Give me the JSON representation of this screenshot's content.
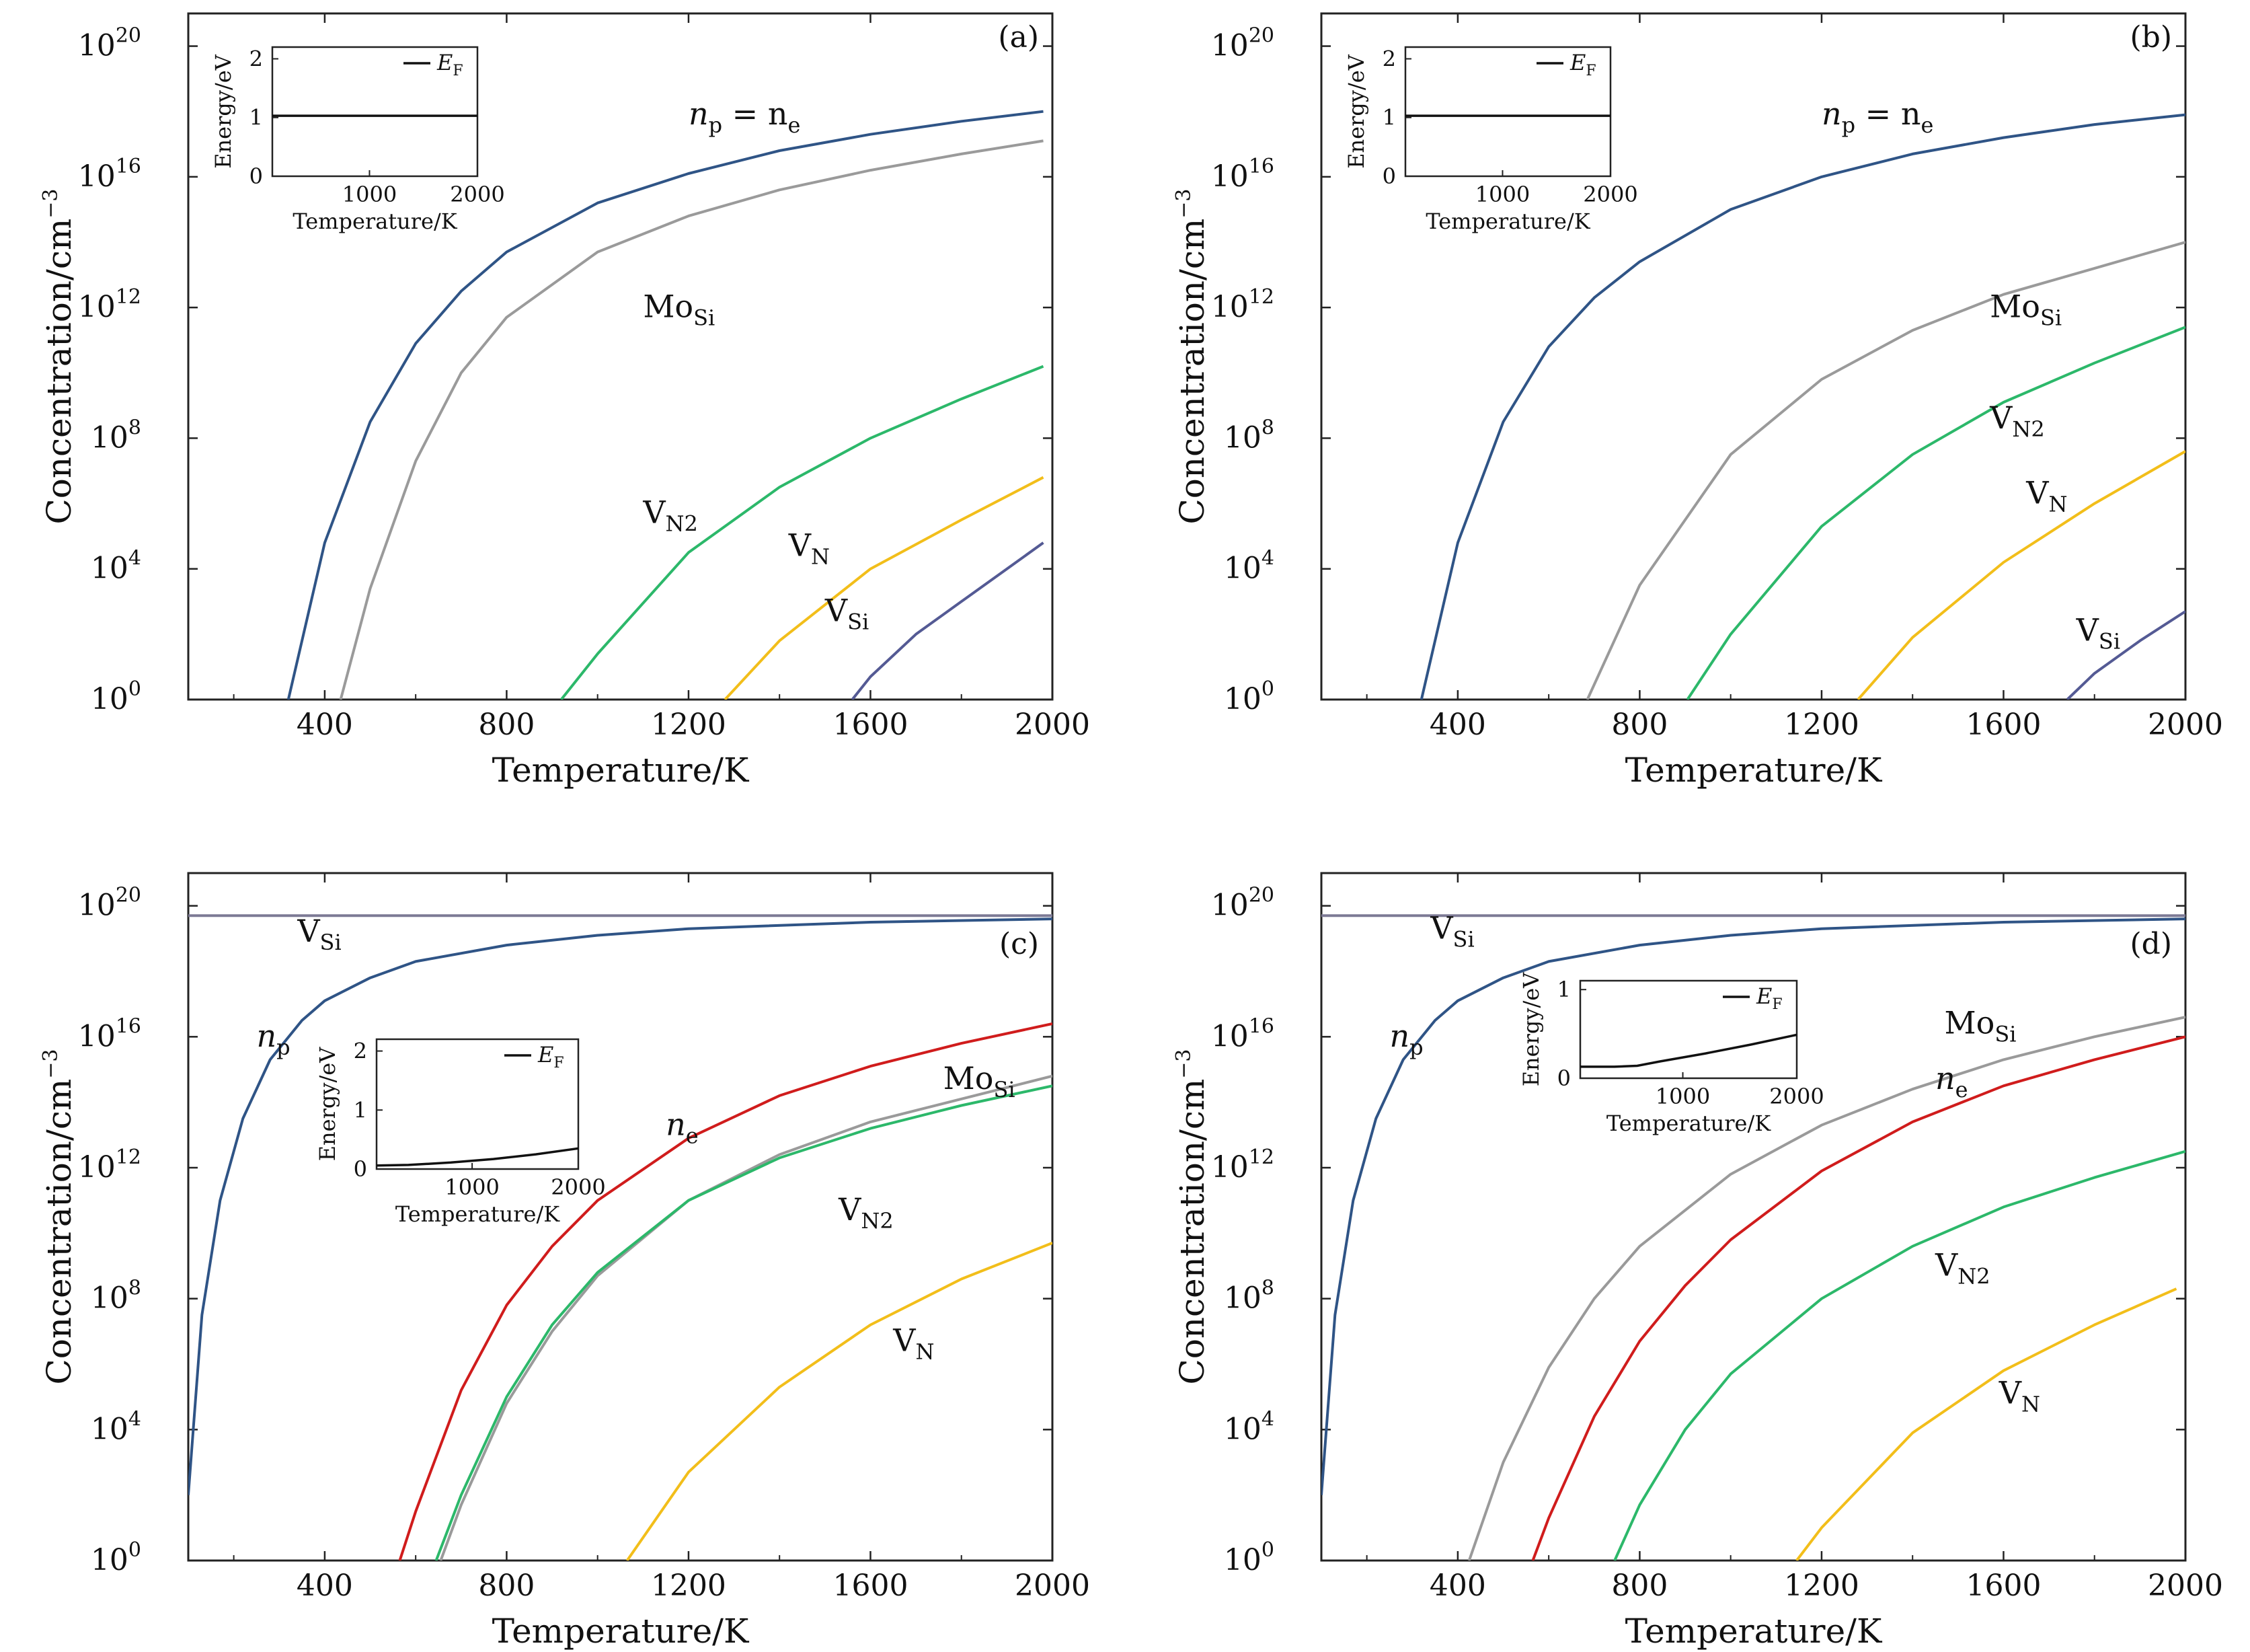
{
  "figure": {
    "x_axis_label": "Temperature/K",
    "y_axis_label": "Concentration/cm",
    "y_axis_unit_exponent": "−3"
  },
  "chart_data": [
    {
      "type": "line",
      "panel": "(a)",
      "xlim": [
        100,
        2000
      ],
      "ylim_log10": [
        0,
        21
      ],
      "x_ticks": [
        400,
        800,
        1200,
        1600,
        2000
      ],
      "y_ticks": [
        {
          "base": "10",
          "exp": "0",
          "value": 0
        },
        {
          "base": "10",
          "exp": "4",
          "value": 4
        },
        {
          "base": "10",
          "exp": "8",
          "value": 8
        },
        {
          "base": "10",
          "exp": "12",
          "value": 12
        },
        {
          "base": "10",
          "exp": "16",
          "value": 16
        },
        {
          "base": "10",
          "exp": "20",
          "value": 20
        }
      ],
      "series": [
        {
          "name": "n_p = n_e",
          "color": "#2f5486",
          "x": [
            320,
            400,
            500,
            600,
            700,
            800,
            1000,
            1200,
            1400,
            1600,
            1800,
            1980
          ],
          "log10_y": [
            0,
            4.8,
            8.5,
            10.9,
            12.5,
            13.7,
            15.2,
            16.1,
            16.8,
            17.3,
            17.7,
            18.0
          ]
        },
        {
          "name": "Mo_Si",
          "color": "#9a9a9a",
          "x": [
            435,
            500,
            600,
            700,
            800,
            1000,
            1200,
            1400,
            1600,
            1800,
            1980
          ],
          "log10_y": [
            0,
            3.4,
            7.3,
            10.0,
            11.7,
            13.7,
            14.8,
            15.6,
            16.2,
            16.7,
            17.1
          ]
        },
        {
          "name": "V_N2",
          "color": "#2cb86a",
          "x": [
            920,
            1000,
            1200,
            1400,
            1600,
            1800,
            1980
          ],
          "log10_y": [
            0,
            1.4,
            4.5,
            6.5,
            8.0,
            9.2,
            10.2
          ]
        },
        {
          "name": "V_N",
          "color": "#f2be1a",
          "x": [
            1280,
            1400,
            1600,
            1800,
            1980
          ],
          "log10_y": [
            0,
            1.8,
            4.0,
            5.5,
            6.8
          ]
        },
        {
          "name": "V_Si",
          "color": "#545a94",
          "x": [
            1560,
            1600,
            1700,
            1800,
            1900,
            1980
          ],
          "log10_y": [
            0,
            0.7,
            2.0,
            3.0,
            4.0,
            4.8
          ]
        }
      ],
      "labels": [
        {
          "series": "n_p = n_e",
          "text": "n",
          "sub": "p",
          "text2": " = n",
          "sub2": "e",
          "x": 1200,
          "log10_y": 17.6
        },
        {
          "series": "Mo_Si",
          "text": "Mo",
          "sub": "Si",
          "x": 1100,
          "log10_y": 11.7
        },
        {
          "series": "V_N2",
          "text": "V",
          "sub": "N2",
          "x": 1100,
          "log10_y": 5.4
        },
        {
          "series": "V_N",
          "text": "V",
          "sub": "N",
          "x": 1420,
          "log10_y": 4.4
        },
        {
          "series": "V_Si",
          "text": "V",
          "sub": "Si",
          "x": 1500,
          "log10_y": 2.4
        }
      ],
      "inset": {
        "xlim": [
          100,
          2000
        ],
        "ylim": [
          0,
          2.2
        ],
        "x_ticks": [
          1000,
          2000
        ],
        "y_ticks": [
          0,
          1,
          2
        ],
        "xlabel": "Temperature/K",
        "ylabel": "Energy/eV",
        "legend": "E",
        "legend_sub": "F",
        "x": [
          100,
          400,
          800,
          1200,
          1600,
          2000
        ],
        "y": [
          1.03,
          1.03,
          1.03,
          1.03,
          1.03,
          1.03
        ]
      }
    },
    {
      "type": "line",
      "panel": "(b)",
      "xlim": [
        100,
        2000
      ],
      "ylim_log10": [
        0,
        21
      ],
      "x_ticks": [
        400,
        800,
        1200,
        1600,
        2000
      ],
      "y_ticks": [
        {
          "base": "10",
          "exp": "0",
          "value": 0
        },
        {
          "base": "10",
          "exp": "4",
          "value": 4
        },
        {
          "base": "10",
          "exp": "8",
          "value": 8
        },
        {
          "base": "10",
          "exp": "12",
          "value": 12
        },
        {
          "base": "10",
          "exp": "16",
          "value": 16
        },
        {
          "base": "10",
          "exp": "20",
          "value": 20
        }
      ],
      "series": [
        {
          "name": "n_p = n_e",
          "color": "#2f5486",
          "x": [
            320,
            400,
            500,
            600,
            700,
            800,
            1000,
            1200,
            1400,
            1600,
            1800,
            2000
          ],
          "log10_y": [
            0,
            4.8,
            8.5,
            10.8,
            12.3,
            13.4,
            15.0,
            16.0,
            16.7,
            17.2,
            17.6,
            17.9
          ]
        },
        {
          "name": "Mo_Si",
          "color": "#9a9a9a",
          "x": [
            685,
            800,
            1000,
            1200,
            1400,
            1600,
            1800,
            2000
          ],
          "log10_y": [
            0,
            3.5,
            7.5,
            9.8,
            11.3,
            12.4,
            13.2,
            14.0
          ]
        },
        {
          "name": "V_N2",
          "color": "#2cb86a",
          "x": [
            905,
            1000,
            1200,
            1400,
            1600,
            1800,
            2000
          ],
          "log10_y": [
            0,
            2.0,
            5.3,
            7.5,
            9.1,
            10.3,
            11.4
          ]
        },
        {
          "name": "V_N",
          "color": "#f2be1a",
          "x": [
            1280,
            1400,
            1600,
            1800,
            2000
          ],
          "log10_y": [
            0,
            1.9,
            4.2,
            6.0,
            7.6
          ]
        },
        {
          "name": "V_Si",
          "color": "#545a94",
          "x": [
            1740,
            1800,
            1900,
            2000
          ],
          "log10_y": [
            0,
            0.8,
            1.8,
            2.7
          ]
        }
      ],
      "labels": [
        {
          "series": "n_p = n_e",
          "text": "n",
          "sub": "p",
          "text2": " = n",
          "sub2": "e",
          "x": 1200,
          "log10_y": 17.6
        },
        {
          "series": "Mo_Si",
          "text": "Mo",
          "sub": "Si",
          "x": 1570,
          "log10_y": 11.7
        },
        {
          "series": "V_N2",
          "text": "V",
          "sub": "N2",
          "x": 1570,
          "log10_y": 8.3
        },
        {
          "series": "V_N",
          "text": "V",
          "sub": "N",
          "x": 1650,
          "log10_y": 6.0
        },
        {
          "series": "V_Si",
          "text": "V",
          "sub": "Si",
          "x": 1760,
          "log10_y": 1.8
        }
      ],
      "inset": {
        "xlim": [
          100,
          2000
        ],
        "ylim": [
          0,
          2.2
        ],
        "x_ticks": [
          1000,
          2000
        ],
        "y_ticks": [
          0,
          1,
          2
        ],
        "xlabel": "Temperature/K",
        "ylabel": "Energy/eV",
        "legend": "E",
        "legend_sub": "F",
        "x": [
          100,
          400,
          800,
          1200,
          1600,
          2000
        ],
        "y": [
          1.03,
          1.03,
          1.03,
          1.03,
          1.03,
          1.03
        ]
      }
    },
    {
      "type": "line",
      "panel": "(c)",
      "xlim": [
        100,
        2000
      ],
      "ylim_log10": [
        0,
        21
      ],
      "x_ticks": [
        400,
        800,
        1200,
        1600,
        2000
      ],
      "y_ticks": [
        {
          "base": "10",
          "exp": "0",
          "value": 0
        },
        {
          "base": "10",
          "exp": "4",
          "value": 4
        },
        {
          "base": "10",
          "exp": "8",
          "value": 8
        },
        {
          "base": "10",
          "exp": "12",
          "value": 12
        },
        {
          "base": "10",
          "exp": "16",
          "value": 16
        },
        {
          "base": "10",
          "exp": "20",
          "value": 20
        }
      ],
      "series": [
        {
          "name": "V_Si",
          "color": "#7d7a95",
          "x": [
            100,
            500,
            1000,
            1500,
            2000
          ],
          "log10_y": [
            19.7,
            19.7,
            19.7,
            19.7,
            19.7
          ]
        },
        {
          "name": "n_p",
          "color": "#2f5486",
          "x": [
            100,
            130,
            170,
            220,
            280,
            350,
            400,
            500,
            600,
            800,
            1000,
            1200,
            1600,
            2000
          ],
          "log10_y": [
            2.0,
            7.5,
            11.0,
            13.5,
            15.3,
            16.5,
            17.1,
            17.8,
            18.3,
            18.8,
            19.1,
            19.3,
            19.5,
            19.6
          ]
        },
        {
          "name": "n_e",
          "color": "#d01c1c",
          "x": [
            565,
            600,
            700,
            800,
            900,
            1000,
            1200,
            1400,
            1600,
            1800,
            2000
          ],
          "log10_y": [
            0,
            1.5,
            5.2,
            7.8,
            9.6,
            11.0,
            12.9,
            14.2,
            15.1,
            15.8,
            16.4
          ]
        },
        {
          "name": "Mo_Si",
          "color": "#9a9a9a",
          "x": [
            655,
            700,
            800,
            900,
            1000,
            1200,
            1400,
            1600,
            1800,
            2000
          ],
          "log10_y": [
            0,
            1.7,
            4.8,
            7.0,
            8.7,
            11.0,
            12.4,
            13.4,
            14.1,
            14.8
          ]
        },
        {
          "name": "V_N2",
          "color": "#2cb86a",
          "x": [
            645,
            700,
            800,
            900,
            1000,
            1200,
            1400,
            1600,
            1800,
            2000
          ],
          "log10_y": [
            0,
            2.0,
            5.0,
            7.2,
            8.8,
            11.0,
            12.3,
            13.2,
            13.9,
            14.5
          ]
        },
        {
          "name": "V_N",
          "color": "#f2be1a",
          "x": [
            1065,
            1200,
            1400,
            1600,
            1800,
            2000
          ],
          "log10_y": [
            0,
            2.7,
            5.3,
            7.2,
            8.6,
            9.7
          ]
        }
      ],
      "labels": [
        {
          "series": "V_Si",
          "text": "V",
          "sub": "Si",
          "x": 340,
          "log10_y": 18.9
        },
        {
          "series": "n_p",
          "text": "n",
          "sub": "p",
          "x": 250,
          "log10_y": 15.7
        },
        {
          "series": "n_e",
          "text": "n",
          "sub": "e",
          "x": 1150,
          "log10_y": 13.0
        },
        {
          "series": "Mo_Si",
          "text": "Mo",
          "sub": "Si",
          "x": 1760,
          "log10_y": 14.4
        },
        {
          "series": "V_N2",
          "text": "V",
          "sub": "N2",
          "x": 1530,
          "log10_y": 10.4
        },
        {
          "series": "V_N",
          "text": "V",
          "sub": "N",
          "x": 1650,
          "log10_y": 6.4
        }
      ],
      "inset": {
        "xlim": [
          100,
          2000
        ],
        "ylim": [
          0,
          2.2
        ],
        "x_ticks": [
          1000,
          2000
        ],
        "y_ticks": [
          0,
          1,
          2
        ],
        "xlabel": "Temperature/K",
        "ylabel": "Energy/eV",
        "legend": "E",
        "legend_sub": "F",
        "x": [
          100,
          400,
          800,
          1200,
          1600,
          2000
        ],
        "y": [
          0.06,
          0.07,
          0.11,
          0.17,
          0.25,
          0.35
        ]
      }
    },
    {
      "type": "line",
      "panel": "(d)",
      "xlim": [
        100,
        2000
      ],
      "ylim_log10": [
        0,
        21
      ],
      "x_ticks": [
        400,
        800,
        1200,
        1600,
        2000
      ],
      "y_ticks": [
        {
          "base": "10",
          "exp": "0",
          "value": 0
        },
        {
          "base": "10",
          "exp": "4",
          "value": 4
        },
        {
          "base": "10",
          "exp": "8",
          "value": 8
        },
        {
          "base": "10",
          "exp": "12",
          "value": 12
        },
        {
          "base": "10",
          "exp": "16",
          "value": 16
        },
        {
          "base": "10",
          "exp": "20",
          "value": 20
        }
      ],
      "series": [
        {
          "name": "V_Si",
          "color": "#7d7a95",
          "x": [
            100,
            500,
            1000,
            1500,
            2000
          ],
          "log10_y": [
            19.7,
            19.7,
            19.7,
            19.7,
            19.7
          ]
        },
        {
          "name": "n_p",
          "color": "#2f5486",
          "x": [
            100,
            130,
            170,
            220,
            280,
            350,
            400,
            500,
            600,
            800,
            1000,
            1200,
            1600,
            2000
          ],
          "log10_y": [
            2.0,
            7.5,
            11.0,
            13.5,
            15.3,
            16.5,
            17.1,
            17.8,
            18.3,
            18.8,
            19.1,
            19.3,
            19.5,
            19.6
          ]
        },
        {
          "name": "Mo_Si",
          "color": "#9a9a9a",
          "x": [
            425,
            500,
            600,
            700,
            800,
            1000,
            1200,
            1400,
            1600,
            1800,
            2000
          ],
          "log10_y": [
            0,
            3.0,
            5.9,
            8.0,
            9.6,
            11.8,
            13.3,
            14.4,
            15.3,
            16.0,
            16.6
          ]
        },
        {
          "name": "n_e",
          "color": "#d01c1c",
          "x": [
            565,
            600,
            700,
            800,
            900,
            1000,
            1200,
            1400,
            1600,
            1800,
            2000
          ],
          "log10_y": [
            0,
            1.3,
            4.4,
            6.7,
            8.4,
            9.8,
            11.9,
            13.4,
            14.5,
            15.3,
            16.0
          ]
        },
        {
          "name": "V_N2",
          "color": "#2cb86a",
          "x": [
            745,
            800,
            900,
            1000,
            1200,
            1400,
            1600,
            1800,
            2000
          ],
          "log10_y": [
            0,
            1.7,
            4.0,
            5.7,
            8.0,
            9.6,
            10.8,
            11.7,
            12.5
          ]
        },
        {
          "name": "V_N",
          "color": "#f2be1a",
          "x": [
            1145,
            1200,
            1400,
            1600,
            1800,
            1980
          ],
          "log10_y": [
            0,
            1.0,
            3.9,
            5.8,
            7.2,
            8.3
          ]
        }
      ],
      "labels": [
        {
          "series": "V_Si",
          "text": "V",
          "sub": "Si",
          "x": 340,
          "log10_y": 19.0
        },
        {
          "series": "n_p",
          "text": "n",
          "sub": "p",
          "x": 250,
          "log10_y": 15.7
        },
        {
          "series": "Mo_Si",
          "text": "Mo",
          "sub": "Si",
          "x": 1470,
          "log10_y": 16.1
        },
        {
          "series": "n_e",
          "text": "n",
          "sub": "e",
          "x": 1450,
          "log10_y": 14.4
        },
        {
          "series": "V_N2",
          "text": "V",
          "sub": "N2",
          "x": 1450,
          "log10_y": 8.7
        },
        {
          "series": "V_N",
          "text": "V",
          "sub": "N",
          "x": 1590,
          "log10_y": 4.8
        }
      ],
      "inset": {
        "xlim": [
          100,
          2000
        ],
        "ylim": [
          0,
          1.1
        ],
        "x_ticks": [
          1000,
          2000
        ],
        "y_ticks": [
          0,
          1
        ],
        "xlabel": "Temperature/K",
        "ylabel": "Energy/eV",
        "legend": "E",
        "legend_sub": "F",
        "x": [
          100,
          400,
          600,
          800,
          1200,
          1600,
          2000
        ],
        "y": [
          0.13,
          0.13,
          0.14,
          0.19,
          0.28,
          0.38,
          0.49
        ]
      }
    }
  ]
}
